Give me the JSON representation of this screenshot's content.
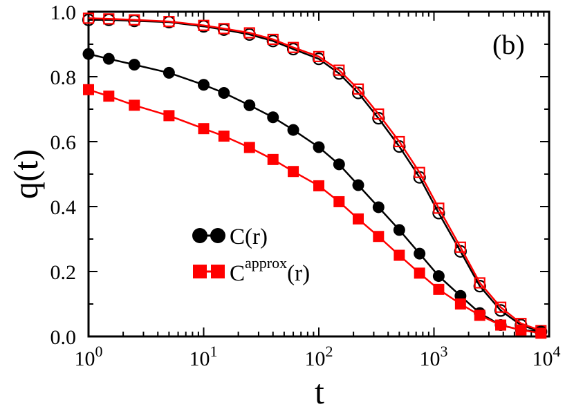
{
  "chart_data": {
    "type": "line",
    "xscale": "log",
    "xlim": [
      1,
      10000
    ],
    "ylim": [
      0,
      1
    ],
    "xlabel": "t",
    "ylabel": "q(t)",
    "panel_label": "(b)",
    "x_ticks": [
      {
        "base": "10",
        "exp": "0"
      },
      {
        "base": "10",
        "exp": "1"
      },
      {
        "base": "10",
        "exp": "2"
      },
      {
        "base": "10",
        "exp": "3"
      },
      {
        "base": "10",
        "exp": "4"
      }
    ],
    "y_ticks": [
      "0.0",
      "0.2",
      "0.4",
      "0.6",
      "0.8",
      "1.0"
    ],
    "x": [
      1,
      1.5,
      2.5,
      5,
      10,
      15,
      25,
      40,
      60,
      100,
      150,
      220,
      330,
      500,
      750,
      1100,
      1700,
      2500,
      3800,
      5700,
      8500
    ],
    "series": [
      {
        "name": "C(r)",
        "color": "#000000",
        "marker": "circle",
        "filled": true,
        "values": [
          0.87,
          0.855,
          0.837,
          0.812,
          0.775,
          0.75,
          0.712,
          0.675,
          0.636,
          0.583,
          0.53,
          0.466,
          0.398,
          0.328,
          0.255,
          0.186,
          0.125,
          0.072,
          0.035,
          0.02,
          0.015
        ]
      },
      {
        "name": "C^approx(r)",
        "color": "#ff0000",
        "marker": "square",
        "filled": true,
        "values": [
          0.76,
          0.74,
          0.712,
          0.68,
          0.64,
          0.617,
          0.582,
          0.545,
          0.508,
          0.464,
          0.415,
          0.362,
          0.308,
          0.25,
          0.195,
          0.145,
          0.1,
          0.065,
          0.035,
          0.02,
          0.01
        ]
      },
      {
        "name": "C(r) open",
        "color": "#000000",
        "marker": "circle",
        "filled": false,
        "values": [
          0.975,
          0.975,
          0.972,
          0.968,
          0.955,
          0.945,
          0.93,
          0.91,
          0.885,
          0.855,
          0.81,
          0.75,
          0.672,
          0.585,
          0.49,
          0.38,
          0.262,
          0.155,
          0.08,
          0.035,
          0.015
        ]
      },
      {
        "name": "C^approx(r) open",
        "color": "#ff0000",
        "marker": "square",
        "filled": false,
        "values": [
          0.98,
          0.978,
          0.975,
          0.97,
          0.958,
          0.948,
          0.935,
          0.915,
          0.89,
          0.862,
          0.82,
          0.762,
          0.685,
          0.6,
          0.505,
          0.395,
          0.275,
          0.165,
          0.09,
          0.04,
          0.018
        ]
      }
    ],
    "legend": {
      "position": "center-left",
      "entries": [
        {
          "label": "C(r)",
          "color": "#000000",
          "marker": "circle"
        },
        {
          "label_main": "C",
          "label_sup": "approx",
          "label_tail": "(r)",
          "color": "#ff0000",
          "marker": "square"
        }
      ]
    }
  }
}
